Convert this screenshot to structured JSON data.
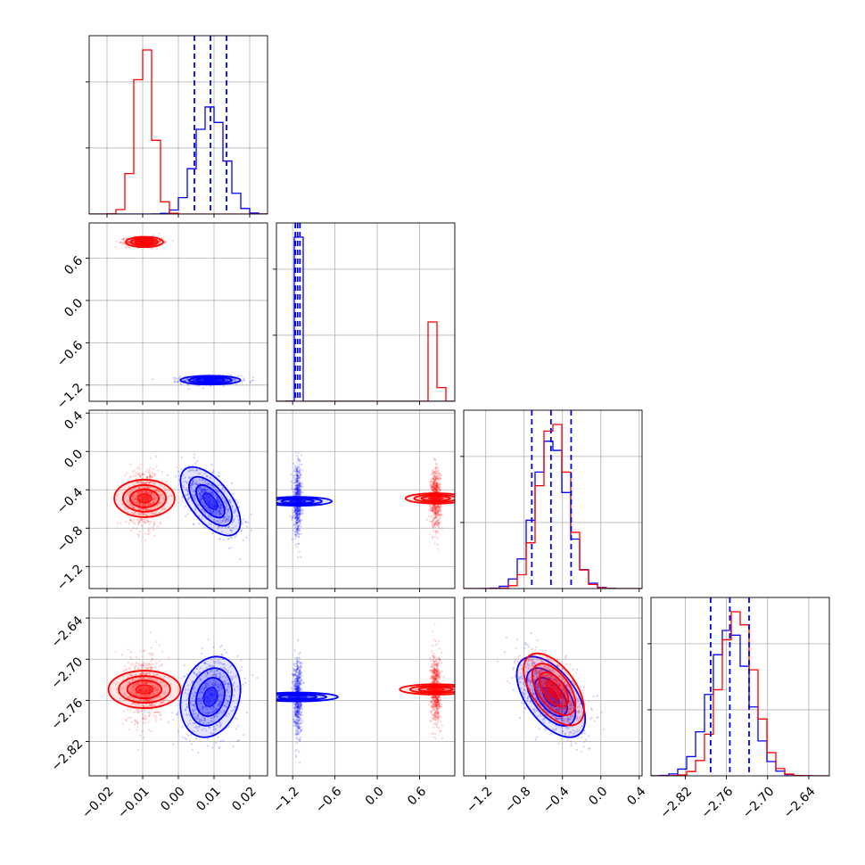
{
  "chart_data": {
    "type": "corner",
    "grid": true,
    "title": "",
    "parameters": [
      {
        "lim": [
          -0.025,
          0.025
        ],
        "ticks": [
          -0.02,
          -0.01,
          0.0,
          0.01,
          0.02
        ],
        "tick_labels": [
          "−0.02",
          "−0.01",
          "0.00",
          "0.01",
          "0.02"
        ]
      },
      {
        "lim": [
          -1.43,
          1.1
        ],
        "ticks": [
          -1.2,
          -0.6,
          0.0,
          0.6
        ],
        "tick_labels": [
          "−1.2",
          "−0.6",
          "0.0",
          "0.6"
        ]
      },
      {
        "lim": [
          -1.43,
          0.43
        ],
        "ticks": [
          -1.2,
          -0.8,
          -0.4,
          0.0,
          0.4
        ],
        "tick_labels": [
          "−1.2",
          "−0.8",
          "−0.4",
          "0.0",
          "0.4"
        ]
      },
      {
        "lim": [
          -2.87,
          -2.61
        ],
        "ticks": [
          -2.82,
          -2.76,
          -2.7,
          -2.64
        ],
        "tick_labels": [
          "−2.82",
          "−2.76",
          "−2.70",
          "−2.64"
        ]
      }
    ],
    "series": [
      {
        "color": "#0000ff",
        "means": [
          0.009,
          -1.13,
          -0.52,
          -2.755
        ],
        "stds": [
          0.004,
          0.03,
          0.17,
          0.028
        ],
        "corr": {
          "0-2": -0.6,
          "1-2": 0.0,
          "0-3": 0.2,
          "2-3": -0.55
        }
      },
      {
        "color": "#ff0000",
        "means": [
          -0.0095,
          0.83,
          -0.49,
          -2.744
        ],
        "stds": [
          0.0025,
          0.035,
          0.15,
          0.025
        ],
        "corr": {
          "0-2": 0.0,
          "1-2": 0.0,
          "0-3": 0.0,
          "2-3": -0.55
        }
      }
    ],
    "quantiles": {
      "color": "#0000ff",
      "values": [
        [
          0.0045,
          0.009,
          0.0135
        ],
        [
          -1.163,
          -1.13,
          -1.097
        ],
        [
          -0.72,
          -0.52,
          -0.31
        ],
        [
          -2.783,
          -2.755,
          -2.727
        ]
      ]
    }
  }
}
